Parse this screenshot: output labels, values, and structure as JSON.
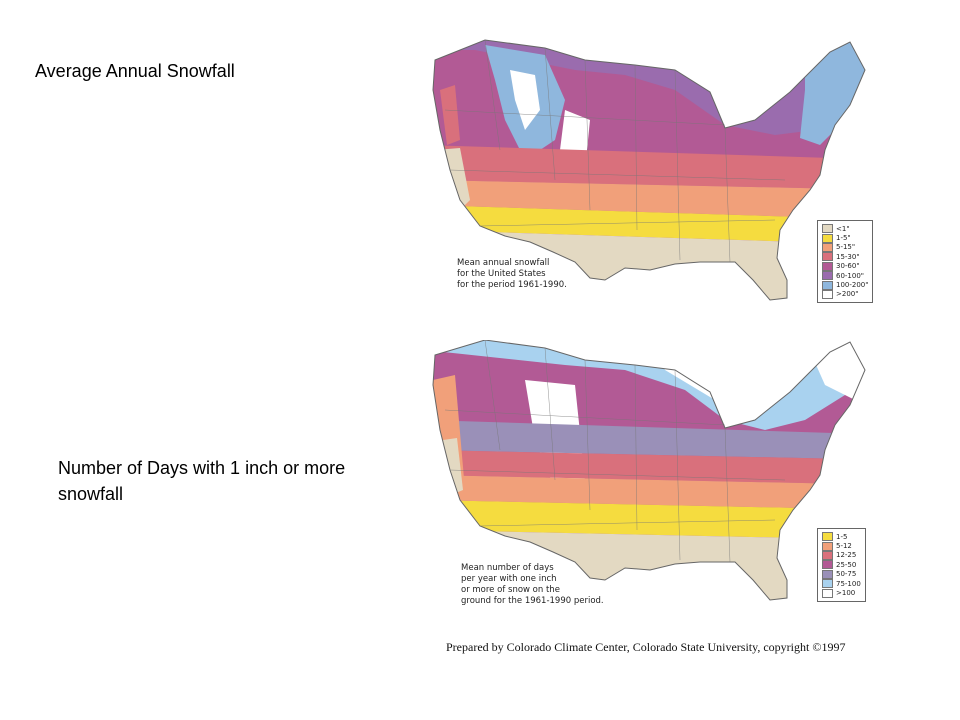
{
  "slide": {
    "title_top": "Average Annual Snowfall",
    "title_bottom": "Number of Days with 1 inch or more snowfall"
  },
  "map_top": {
    "note_lines": [
      "Mean annual snowfall",
      "for the United States",
      "for the period 1961-1990."
    ],
    "legend": [
      {
        "label": "<1\"",
        "color": "#e3d9c2"
      },
      {
        "label": "1-5\"",
        "color": "#f5dc3f"
      },
      {
        "label": "5-15\"",
        "color": "#f1a07a"
      },
      {
        "label": "15-30\"",
        "color": "#d9707c"
      },
      {
        "label": "30-60\"",
        "color": "#b25a95"
      },
      {
        "label": "60-100\"",
        "color": "#9a6cae"
      },
      {
        "label": "100-200\"",
        "color": "#8fb7dd"
      },
      {
        "label": ">200\"",
        "color": "#ffffff"
      }
    ]
  },
  "map_bottom": {
    "note_lines": [
      "Mean number of days",
      "per year with one inch",
      "or more of snow on the",
      "ground for the 1961-1990 period."
    ],
    "legend": [
      {
        "label": "1-5",
        "color": "#f5dc3f"
      },
      {
        "label": "5-12",
        "color": "#f1a07a"
      },
      {
        "label": "12-25",
        "color": "#d9707c"
      },
      {
        "label": "25-50",
        "color": "#b25a95"
      },
      {
        "label": "50-75",
        "color": "#9a90b8"
      },
      {
        "label": "75-100",
        "color": "#a9d2ef"
      },
      {
        "label": ">100",
        "color": "#ffffff"
      }
    ]
  },
  "credit": "Prepared by Colorado Climate Center, Colorado State University, copyright ©1997"
}
